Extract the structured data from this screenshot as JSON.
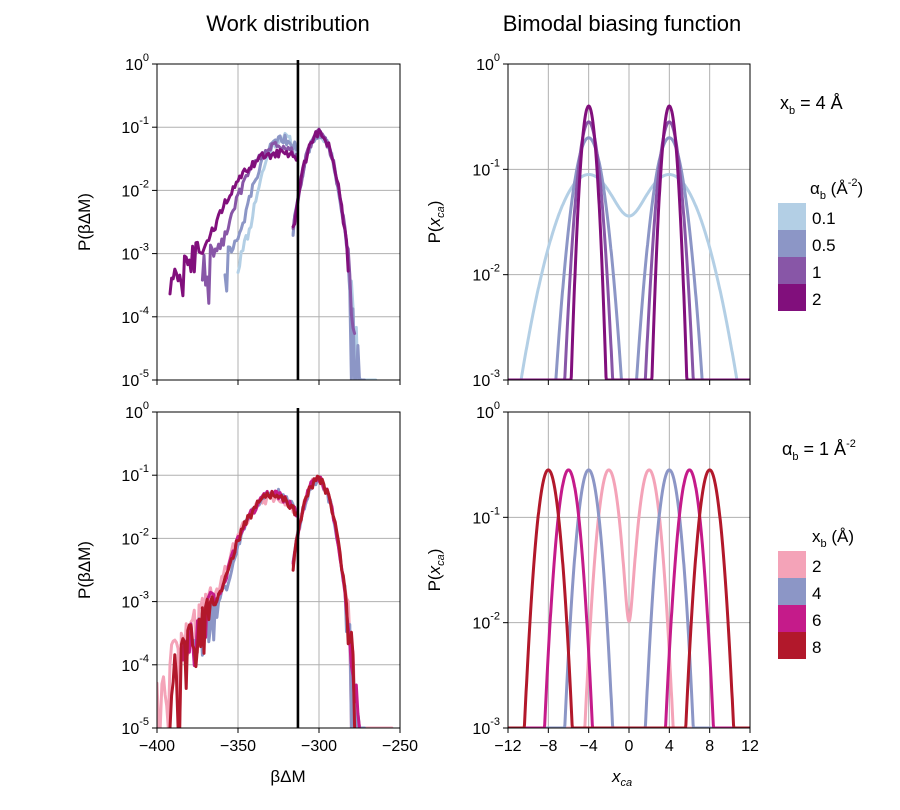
{
  "titles": {
    "left": "Work distribution",
    "right": "Bimodal biasing function"
  },
  "colors": {
    "alpha_0.1": "#b3cfe5",
    "alpha_0.5": "#8c96c6",
    "alpha_1": "#8856a7",
    "alpha_2": "#810f7c",
    "xb_2": "#f4a3b8",
    "xb_4": "#8c96c6",
    "xb_6": "#c51b8a",
    "xb_8": "#b2182b",
    "vline": "#000000"
  },
  "annotations": {
    "top": {
      "main": "x",
      "sub": "b",
      "rest": " = 4 Å"
    },
    "bottom": {
      "main": "α",
      "sub": "b",
      "rest": " = 1 Å",
      "sup": "-2"
    }
  },
  "legends": {
    "top": {
      "title_main": "α",
      "title_sub": "b",
      "title_rest": " (Å",
      "title_sup": "-2",
      "title_end": ")",
      "entries": [
        "0.1",
        "0.5",
        "1",
        "2"
      ]
    },
    "bottom": {
      "title_main": "x",
      "title_sub": "b",
      "title_rest": " (Å)",
      "entries": [
        "2",
        "4",
        "6",
        "8"
      ]
    }
  },
  "axes": {
    "log_tick_base": "10",
    "work_ticks": [
      "−400",
      "−350",
      "−300",
      "−250"
    ],
    "xca_ticks": [
      "−12",
      "−8",
      "−4",
      "0",
      "4",
      "8",
      "12"
    ],
    "work_xlabel": "βΔM",
    "work_ylabel": "P(βΔM)",
    "xca_xlabel": "x",
    "xca_xlabel_sub": "ca",
    "xca_ylabel_pre": "P(",
    "xca_ylabel_var": "x",
    "xca_ylabel_sub": "ca",
    "xca_ylabel_post": ")",
    "work_yexp": [
      "0",
      "-1",
      "-2",
      "-3",
      "-4",
      "-5"
    ],
    "xca_yexp": [
      "0",
      "-1",
      "-2",
      "-3"
    ]
  },
  "chart_data": [
    {
      "id": "work-top",
      "type": "line",
      "title": "Work distribution",
      "xlabel": "βΔM",
      "ylabel": "P(βΔM)",
      "xlim": [
        -400,
        -250
      ],
      "ylim": [
        1e-05,
        1
      ],
      "yscale": "log",
      "vline_x": -313,
      "series": [
        {
          "name": "α_b = 0.1",
          "color_key": "alpha_0.1",
          "left": {
            "mu": -322,
            "sigma": 8,
            "peak": 0.07,
            "from": -350
          },
          "right": {
            "mu": -300,
            "sigma": 6,
            "peak": 0.08,
            "to": -265
          }
        },
        {
          "name": "α_b = 0.5",
          "color_key": "alpha_0.5",
          "left": {
            "mu": -322,
            "sigma": 10,
            "peak": 0.065,
            "from": -358
          },
          "right": {
            "mu": -300,
            "sigma": 6,
            "peak": 0.08,
            "to": -272
          }
        },
        {
          "name": "α_b = 1",
          "color_key": "alpha_1",
          "left": {
            "mu": -325,
            "sigma": 13,
            "peak": 0.05,
            "from": -372
          },
          "right": {
            "mu": -300,
            "sigma": 6,
            "peak": 0.08,
            "to": -278
          }
        },
        {
          "name": "α_b = 2",
          "color_key": "alpha_2",
          "left": {
            "mu": -325,
            "sigma": 17,
            "peak": 0.04,
            "from": -392
          },
          "right": {
            "mu": -300,
            "sigma": 6,
            "peak": 0.08,
            "to": -282
          }
        }
      ]
    },
    {
      "id": "bias-top",
      "type": "line",
      "title": "Bimodal biasing function",
      "xlabel": "x_ca",
      "ylabel": "P(x_ca)",
      "xlim": [
        -12,
        12
      ],
      "ylim": [
        0.001,
        1
      ],
      "yscale": "log",
      "series": [
        {
          "name": "α_b = 0.1",
          "color_key": "alpha_0.1",
          "alpha": 0.1,
          "xb": 4
        },
        {
          "name": "α_b = 0.5",
          "color_key": "alpha_0.5",
          "alpha": 0.5,
          "xb": 4
        },
        {
          "name": "α_b = 1",
          "color_key": "alpha_1",
          "alpha": 1,
          "xb": 4
        },
        {
          "name": "α_b = 2",
          "color_key": "alpha_2",
          "alpha": 2,
          "xb": 4
        }
      ]
    },
    {
      "id": "work-bottom",
      "type": "line",
      "title": "",
      "xlabel": "βΔM",
      "ylabel": "P(βΔM)",
      "xlim": [
        -400,
        -250
      ],
      "ylim": [
        1e-05,
        1
      ],
      "yscale": "log",
      "vline_x": -313,
      "series": [
        {
          "name": "x_b = 2",
          "color_key": "xb_2",
          "left": {
            "mu": -328,
            "sigma": 13,
            "peak": 0.045,
            "from": -400
          },
          "right": {
            "mu": -301,
            "sigma": 6,
            "peak": 0.085,
            "to": -255
          }
        },
        {
          "name": "x_b = 4",
          "color_key": "xb_4",
          "left": {
            "mu": -328,
            "sigma": 11,
            "peak": 0.055,
            "from": -378
          },
          "right": {
            "mu": -301,
            "sigma": 6,
            "peak": 0.085,
            "to": -272
          }
        },
        {
          "name": "x_b = 6",
          "color_key": "xb_6",
          "left": {
            "mu": -328,
            "sigma": 12,
            "peak": 0.05,
            "from": -385
          },
          "right": {
            "mu": -301,
            "sigma": 6,
            "peak": 0.085,
            "to": -275
          }
        },
        {
          "name": "x_b = 8",
          "color_key": "xb_8",
          "left": {
            "mu": -328,
            "sigma": 12,
            "peak": 0.05,
            "from": -392
          },
          "right": {
            "mu": -301,
            "sigma": 6,
            "peak": 0.085,
            "to": -278
          }
        }
      ]
    },
    {
      "id": "bias-bottom",
      "type": "line",
      "title": "",
      "xlabel": "x_ca",
      "ylabel": "P(x_ca)",
      "xlim": [
        -12,
        12
      ],
      "ylim": [
        0.001,
        1
      ],
      "yscale": "log",
      "series": [
        {
          "name": "x_b = 2",
          "color_key": "xb_2",
          "alpha": 1,
          "xb": 2
        },
        {
          "name": "x_b = 4",
          "color_key": "xb_4",
          "alpha": 1,
          "xb": 4
        },
        {
          "name": "x_b = 6",
          "color_key": "xb_6",
          "alpha": 1,
          "xb": 6
        },
        {
          "name": "x_b = 8",
          "color_key": "xb_8",
          "alpha": 1,
          "xb": 8
        }
      ]
    }
  ]
}
